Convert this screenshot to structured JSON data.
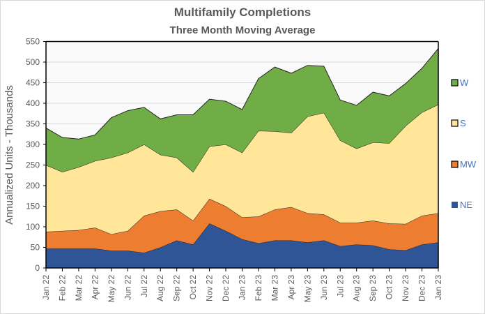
{
  "chart_data": {
    "type": "area",
    "stacked": true,
    "title": "Multifamily  Completions",
    "subtitle": "Three Month Moving Average",
    "xlabel": "",
    "ylabel": "Annualized  Units  - Thousands",
    "ylim": [
      0,
      550
    ],
    "yticks": [
      0,
      50,
      100,
      150,
      200,
      250,
      300,
      350,
      400,
      450,
      500,
      550
    ],
    "grid": true,
    "legend_position": "right",
    "categories": [
      "Jan 22",
      "Feb 22",
      "Mar 22",
      "Apr 22",
      "May 22",
      "Jun 22",
      "Jul 22",
      "Aug 22",
      "Sep 22",
      "Oct 22",
      "Nov 22",
      "Dec 22",
      "Jan 23",
      "Feb 23",
      "Mar 23",
      "Apr 23",
      "May 23",
      "Jun 23",
      "Jul 23",
      "Aug 23",
      "Sep 23",
      "Oct 23",
      "Nov 23",
      "Dec 23",
      "Jan 23"
    ],
    "series": [
      {
        "name": "NE",
        "color": "#2f5597",
        "values": [
          47,
          47,
          47,
          47,
          42,
          42,
          37,
          50,
          67,
          57,
          108,
          90,
          70,
          60,
          67,
          67,
          62,
          67,
          53,
          57,
          55,
          45,
          43,
          57,
          62
        ]
      },
      {
        "name": "MW",
        "color": "#ed7d31",
        "values": [
          41,
          43,
          45,
          51,
          40,
          48,
          90,
          88,
          75,
          58,
          60,
          60,
          53,
          65,
          75,
          81,
          71,
          63,
          57,
          53,
          60,
          63,
          64,
          70,
          71
        ]
      },
      {
        "name": "S",
        "color": "#ffe699",
        "values": [
          162,
          143,
          153,
          162,
          186,
          190,
          173,
          137,
          126,
          118,
          127,
          150,
          157,
          208,
          190,
          180,
          235,
          247,
          200,
          180,
          190,
          195,
          238,
          251,
          264
        ]
      },
      {
        "name": "W",
        "color": "#70ad47",
        "values": [
          90,
          84,
          68,
          63,
          97,
          102,
          90,
          87,
          104,
          139,
          115,
          105,
          105,
          127,
          156,
          145,
          124,
          113,
          98,
          105,
          122,
          115,
          103,
          107,
          136
        ]
      }
    ],
    "legend": [
      {
        "name": "W",
        "color": "#70ad47"
      },
      {
        "name": "S",
        "color": "#ffe699"
      },
      {
        "name": "MW",
        "color": "#ed7d31"
      },
      {
        "name": "NE",
        "color": "#2f5597"
      }
    ]
  }
}
